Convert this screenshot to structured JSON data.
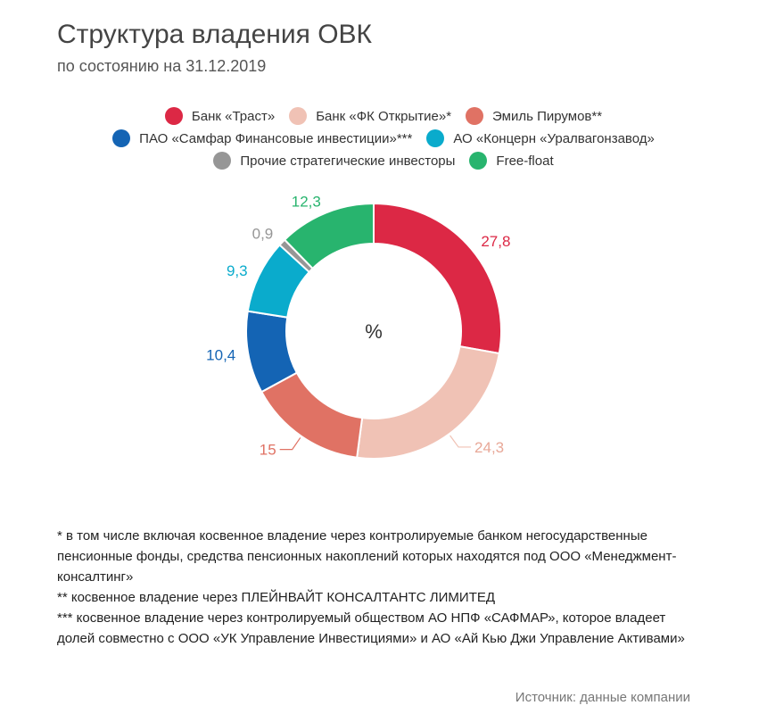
{
  "chart_data": {
    "type": "pie",
    "title": "Структура владения ОВК",
    "subtitle": "по состоянию на 31.12.2019",
    "center_label": "%",
    "legend_placement": "top",
    "slices": [
      {
        "name": "Банк «Траст»",
        "value": 27.8,
        "label": "27,8",
        "color": "#dc2845"
      },
      {
        "name": "Банк «ФК Открытие»*",
        "value": 24.3,
        "label": "24,3",
        "color": "#f0c2b5"
      },
      {
        "name": "Эмиль Пирумов**",
        "value": 15,
        "label": "15",
        "color": "#e07264"
      },
      {
        "name": "ПАО «Самфар Финансовые инвестиции»***",
        "value": 10.4,
        "label": "10,4",
        "color": "#1464b4"
      },
      {
        "name": "АО «Концерн «Уралвагонзавод»",
        "value": 9.3,
        "label": "9,3",
        "color": "#0aabcc"
      },
      {
        "name": "Прочие стратегические инвесторы",
        "value": 0.9,
        "label": "0,9",
        "color": "#969696"
      },
      {
        "name": "Free-float",
        "value": 12.3,
        "label": "12,3",
        "color": "#28b46e"
      }
    ]
  },
  "notes": [
    "* в том числе включая косвенное владение через контролируемые банком негосударственные пенсионные фонды, средства пенсионных накоплений которых находятся под ООО «Менеджмент-консалтинг»",
    "** косвенное владение через ПЛЕЙНВАЙТ КОНСАЛТАНТС ЛИМИТЕД",
    "*** косвенное владение через контролируемый обществом АО НПФ «САФМАР», которое владеет долей совместно с ООО «УК Управление Инвестициями» и АО «Ай Кью Джи Управление Активами»"
  ],
  "source": "Источник: данные компании"
}
